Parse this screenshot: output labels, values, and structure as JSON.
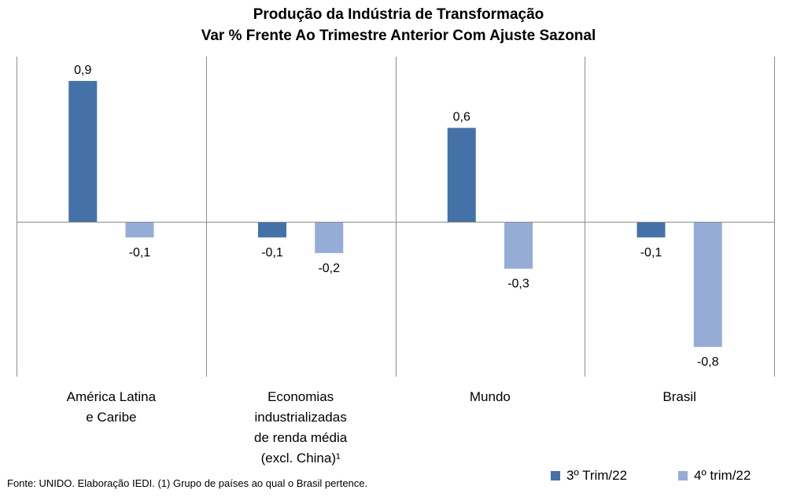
{
  "chart_data": {
    "type": "bar",
    "title": "Produção da Indústria de Transformação",
    "subtitle": "Var % Frente Ao Trimestre Anterior Com Ajuste Sazonal",
    "categories": [
      [
        "América Latina",
        "e Caribe"
      ],
      [
        "Economias",
        "industrializadas",
        "de renda média",
        "(excl. China)¹"
      ],
      [
        "Mundo"
      ],
      [
        "Brasil"
      ]
    ],
    "series": [
      {
        "name": "3º Trim/22",
        "color": "#4472a8",
        "values": [
          0.9,
          -0.1,
          0.6,
          -0.1
        ],
        "labels": [
          "0,9",
          "-0,1",
          "0,6",
          "-0,1"
        ]
      },
      {
        "name": "4º trim/22",
        "color": "#95acd6",
        "values": [
          -0.1,
          -0.2,
          -0.3,
          -0.8
        ],
        "labels": [
          "-0,1",
          "-0,2",
          "-0,3",
          "-0,8"
        ]
      }
    ],
    "ylim": [
      -1.0,
      1.0
    ],
    "grid": false,
    "legend_position": "bottom-right"
  },
  "footnote": "Fonte: UNIDO. Elaboração IEDI. (1) Grupo de países ao qual o Brasil pertence."
}
